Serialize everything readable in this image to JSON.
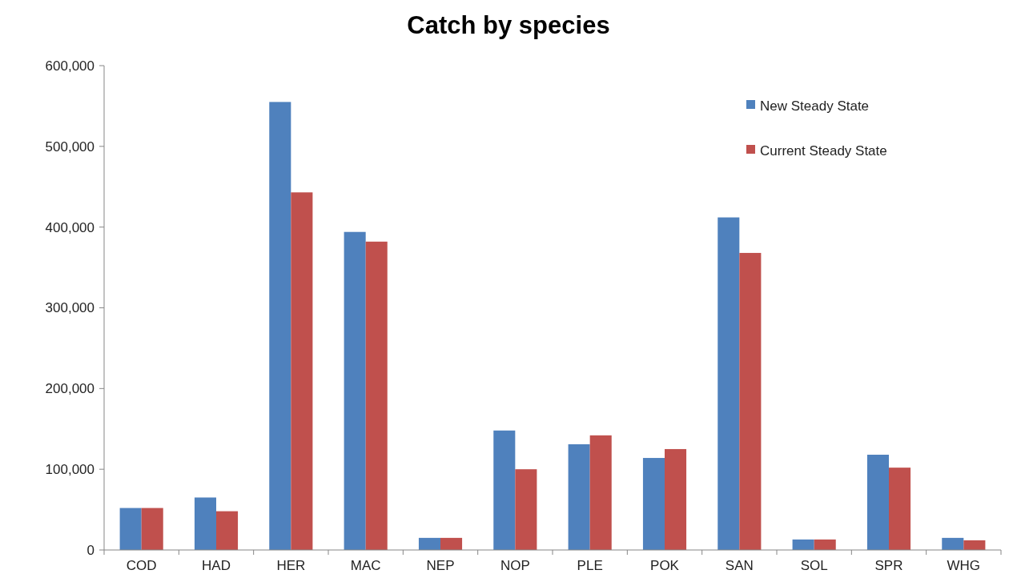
{
  "chart_data": {
    "type": "bar",
    "title": "Catch by species",
    "categories": [
      "COD",
      "HAD",
      "HER",
      "MAC",
      "NEP",
      "NOP",
      "PLE",
      "POK",
      "SAN",
      "SOL",
      "SPR",
      "WHG"
    ],
    "series": [
      {
        "name": "New Steady State",
        "color": "#4f81bd",
        "values": [
          52000,
          65000,
          555000,
          394000,
          15000,
          148000,
          131000,
          114000,
          412000,
          13000,
          118000,
          15000
        ]
      },
      {
        "name": "Current Steady State",
        "color": "#c0504d",
        "values": [
          52000,
          48000,
          443000,
          382000,
          15000,
          100000,
          142000,
          125000,
          368000,
          13000,
          102000,
          12000
        ]
      }
    ],
    "ylim": [
      0,
      600000
    ],
    "yticks": [
      {
        "value": 0,
        "label": "0"
      },
      {
        "value": 100000,
        "label": "100,000"
      },
      {
        "value": 200000,
        "label": "200,000"
      },
      {
        "value": 300000,
        "label": "300,000"
      },
      {
        "value": 400000,
        "label": "400,000"
      },
      {
        "value": 500000,
        "label": "500,000"
      },
      {
        "value": 600000,
        "label": "600,000"
      }
    ],
    "grid": false,
    "legend": "top right"
  }
}
